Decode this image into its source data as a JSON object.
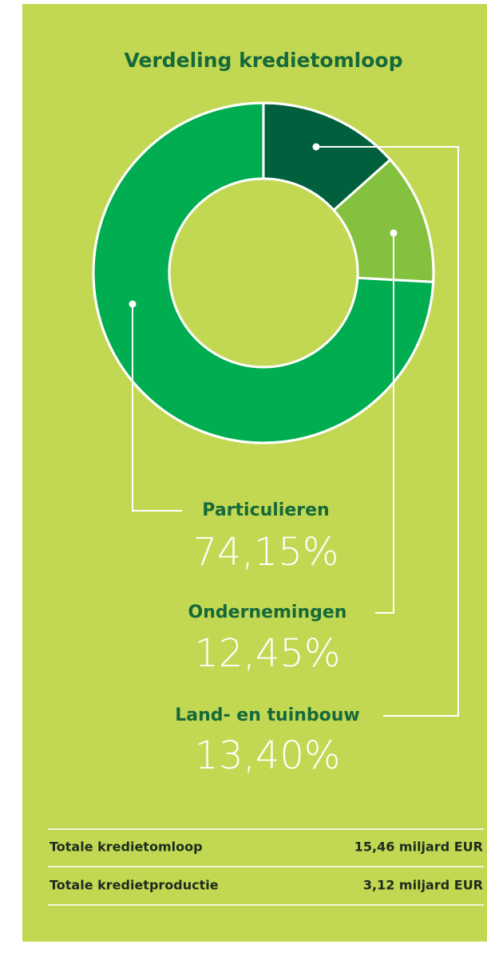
{
  "chart_data": {
    "type": "pie",
    "title": "Verdeling kredietomloop",
    "categories": [
      "Land- en tuinbouw",
      "Ondernemingen",
      "Particulieren"
    ],
    "values": [
      13.4,
      12.45,
      74.15
    ],
    "value_labels": [
      "13,40%",
      "12,45%",
      "74,15%"
    ],
    "colors": [
      "#005f3c",
      "#84c13e",
      "#00ad50"
    ]
  },
  "table": {
    "rows": [
      [
        "Totale kredietomloop",
        "15,46 miljard EUR"
      ],
      [
        "Totale kredietproductie",
        "3,12 miljard EUR"
      ]
    ]
  }
}
